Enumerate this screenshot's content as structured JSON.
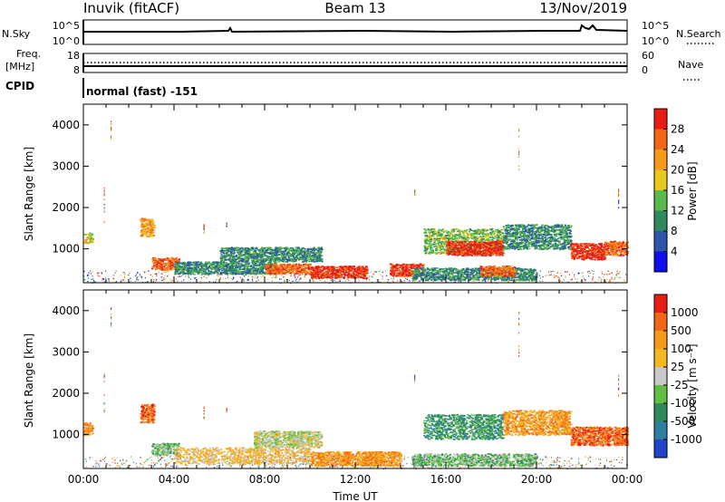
{
  "header": {
    "station": "Inuvik (fitACF)",
    "beam": "Beam 13",
    "date": "13/Nov/2019"
  },
  "strip_panels": {
    "nsky_label": "N.Sky",
    "nsearch_label": "N.Search",
    "log_ticks": [
      "10^5",
      "10^0"
    ],
    "freq_label_1": "Freq.",
    "freq_label_2": "[MHz]",
    "freq_ticks": [
      "18",
      "8"
    ],
    "nave_label": "Nave",
    "nave_ticks": [
      "60",
      "0"
    ],
    "cpid_label": "CPID",
    "cpid_value": "normal (fast) -151"
  },
  "chart_data": [
    {
      "type": "heatmap",
      "name": "power",
      "ylabel": "Slant Range [km]",
      "xlabel": "",
      "ylim": [
        180,
        4500
      ],
      "yticks": [
        1000,
        2000,
        3000,
        4000
      ],
      "xlim_hours": [
        0,
        24
      ],
      "colorbar": {
        "label": "Power [dB]",
        "ticks": [
          "4",
          "8",
          "12",
          "16",
          "20",
          "24",
          "28"
        ],
        "colors": [
          "#1010ee",
          "#2c56a8",
          "#2e8a5c",
          "#5abb4a",
          "#e9c81f",
          "#f59a1c",
          "#f26617",
          "#e81c12"
        ]
      },
      "regions": [
        {
          "t0": 0.0,
          "t1": 0.4,
          "r0": 1150,
          "r1": 1400,
          "level": 4
        },
        {
          "t0": 2.5,
          "t1": 3.1,
          "r0": 1300,
          "r1": 1750,
          "level": 5
        },
        {
          "t0": 3.0,
          "t1": 4.2,
          "r0": 500,
          "r1": 800,
          "level": 6
        },
        {
          "t0": 4.0,
          "t1": 8.5,
          "r0": 400,
          "r1": 700,
          "level": 2
        },
        {
          "t0": 6.0,
          "t1": 10.5,
          "r0": 700,
          "r1": 1050,
          "level": 2
        },
        {
          "t0": 8.0,
          "t1": 10.0,
          "r0": 400,
          "r1": 650,
          "level": 6
        },
        {
          "t0": 10.0,
          "t1": 12.5,
          "r0": 300,
          "r1": 600,
          "level": 7
        },
        {
          "t0": 13.5,
          "t1": 15.0,
          "r0": 350,
          "r1": 650,
          "level": 7
        },
        {
          "t0": 15.0,
          "t1": 18.5,
          "r0": 900,
          "r1": 1500,
          "level": 3
        },
        {
          "t0": 16.0,
          "t1": 18.5,
          "r0": 850,
          "r1": 1200,
          "level": 7
        },
        {
          "t0": 18.5,
          "t1": 21.5,
          "r0": 1000,
          "r1": 1600,
          "level": 2
        },
        {
          "t0": 21.5,
          "t1": 23.0,
          "r0": 750,
          "r1": 1150,
          "level": 7
        },
        {
          "t0": 23.0,
          "t1": 24.0,
          "r0": 850,
          "r1": 1200,
          "level": 6
        },
        {
          "t0": 14.5,
          "t1": 20.0,
          "r0": 250,
          "r1": 550,
          "level": 2
        },
        {
          "t0": 17.5,
          "t1": 19.0,
          "r0": 350,
          "r1": 600,
          "level": 6
        }
      ]
    },
    {
      "type": "heatmap",
      "name": "velocity",
      "ylabel": "Slant Range [km]",
      "xlabel": "Time UT",
      "ylim": [
        180,
        4500
      ],
      "yticks": [
        1000,
        2000,
        3000,
        4000
      ],
      "xlim_hours": [
        0,
        24
      ],
      "xticks": [
        "00:00",
        "04:00",
        "08:00",
        "12:00",
        "16:00",
        "20:00",
        "00:00"
      ],
      "colorbar": {
        "label": "Velocity [m s⁻¹]",
        "ticks": [
          "1000",
          "500",
          "100",
          "25",
          "-25",
          "-100",
          "-500",
          "-1000"
        ],
        "colors": [
          "#1f45c8",
          "#2c7fa0",
          "#2e8a5c",
          "#60c044",
          "#c8c8c8",
          "#f5b820",
          "#f59a1c",
          "#f26617",
          "#e81c12"
        ]
      },
      "regions": [
        {
          "t0": 0.0,
          "t1": 0.4,
          "r0": 1000,
          "r1": 1300,
          "level": 6
        },
        {
          "t0": 2.5,
          "t1": 3.1,
          "r0": 1300,
          "r1": 1750,
          "level": 7
        },
        {
          "t0": 3.0,
          "t1": 4.2,
          "r0": 500,
          "r1": 800,
          "level": 3
        },
        {
          "t0": 4.0,
          "t1": 10.0,
          "r0": 300,
          "r1": 700,
          "level": 5
        },
        {
          "t0": 7.5,
          "t1": 10.5,
          "r0": 700,
          "r1": 1100,
          "level": 4
        },
        {
          "t0": 10.0,
          "t1": 14.0,
          "r0": 250,
          "r1": 600,
          "level": 6
        },
        {
          "t0": 15.0,
          "t1": 18.5,
          "r0": 900,
          "r1": 1500,
          "level": 2
        },
        {
          "t0": 18.5,
          "t1": 21.5,
          "r0": 1000,
          "r1": 1600,
          "level": 6
        },
        {
          "t0": 21.5,
          "t1": 24.0,
          "r0": 750,
          "r1": 1200,
          "level": 7
        },
        {
          "t0": 14.5,
          "t1": 20.0,
          "r0": 250,
          "r1": 550,
          "level": 3
        }
      ]
    }
  ]
}
